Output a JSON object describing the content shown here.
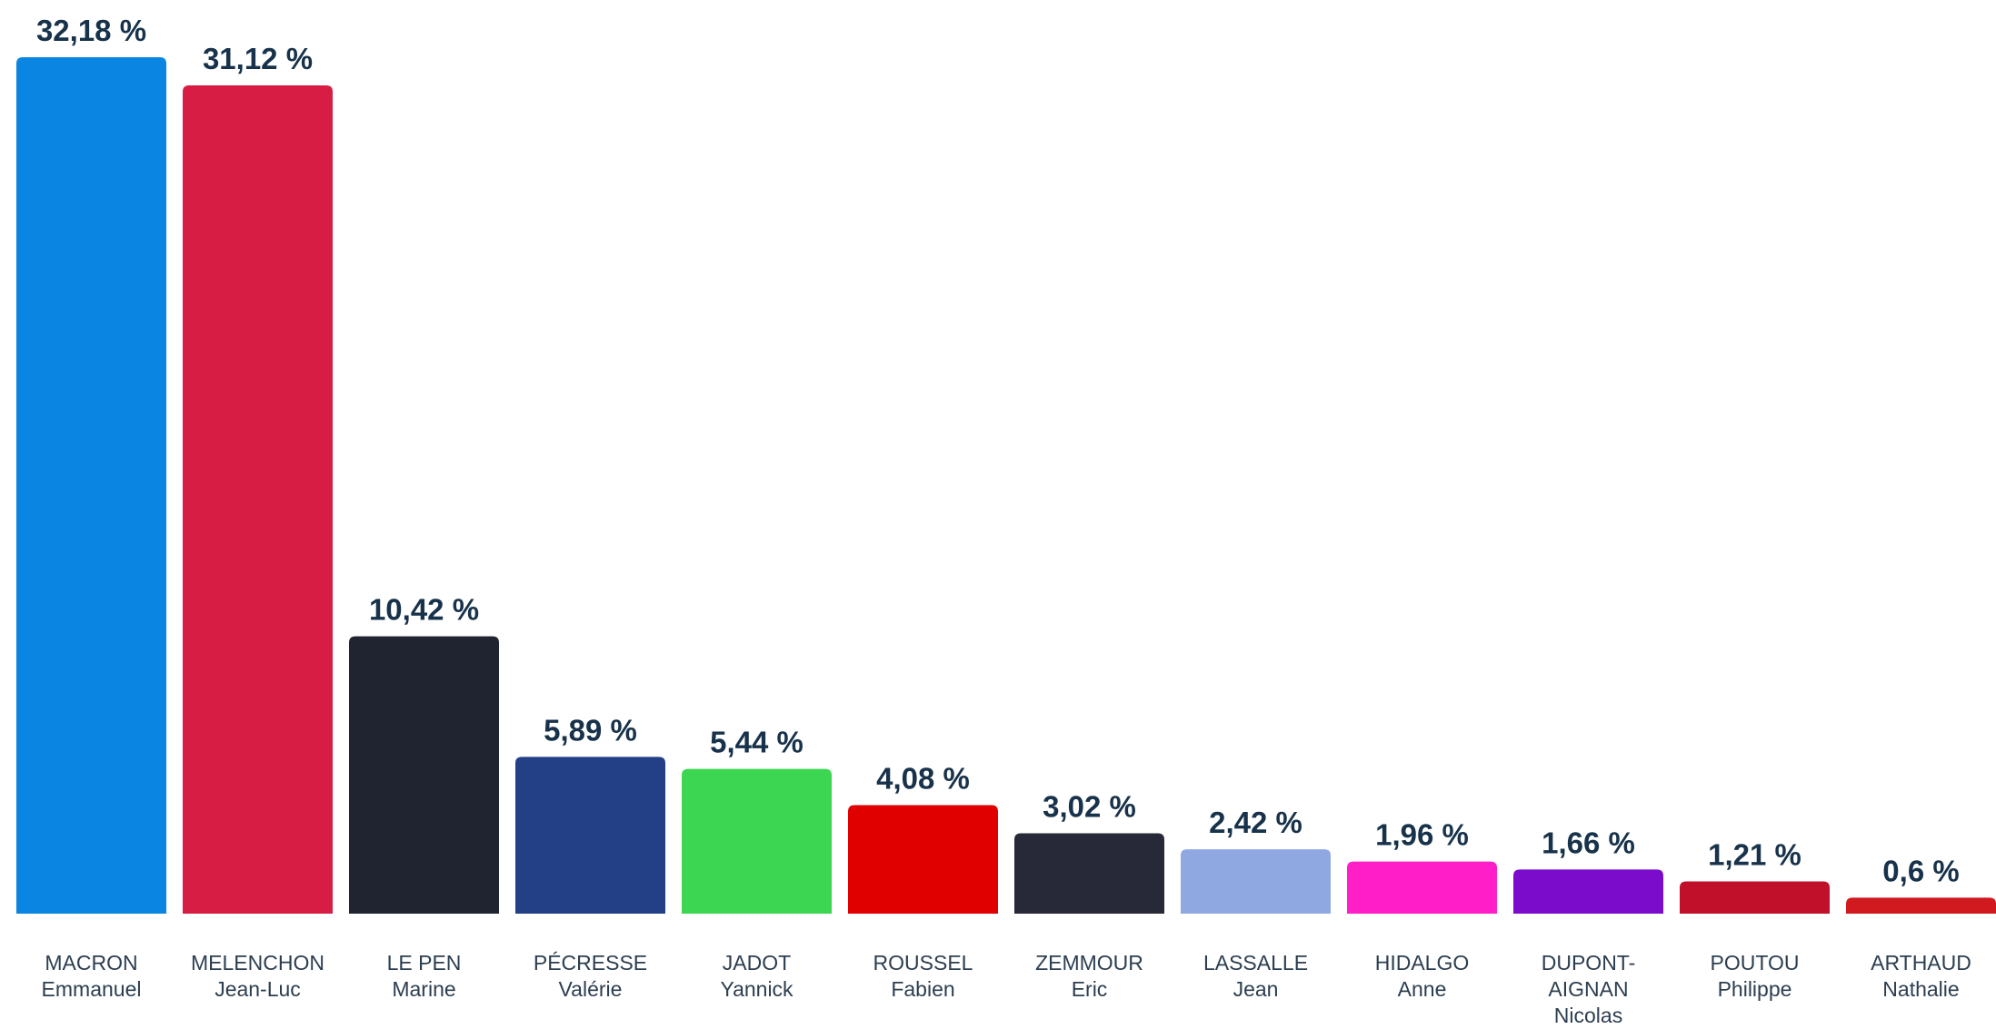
{
  "chart_data": {
    "type": "bar",
    "categories": [
      [
        "MACRON",
        "Emmanuel"
      ],
      [
        "MELENCHON",
        "Jean-Luc"
      ],
      [
        "LE PEN",
        "Marine"
      ],
      [
        "PÉCRESSE",
        "Valérie"
      ],
      [
        "JADOT",
        "Yannick"
      ],
      [
        "ROUSSEL",
        "Fabien"
      ],
      [
        "ZEMMOUR",
        "Eric"
      ],
      [
        "LASSALLE",
        "Jean"
      ],
      [
        "HIDALGO",
        "Anne"
      ],
      [
        "DUPONT-",
        "AIGNAN",
        "Nicolas"
      ],
      [
        "POUTOU",
        "Philippe"
      ],
      [
        "ARTHAUD",
        "Nathalie"
      ]
    ],
    "values": [
      32.18,
      31.12,
      10.42,
      5.89,
      5.44,
      4.08,
      3.02,
      2.42,
      1.96,
      1.66,
      1.21,
      0.6
    ],
    "value_labels": [
      "32,18 %",
      "31,12 %",
      "10,42 %",
      "5,89 %",
      "5,44 %",
      "4,08 %",
      "3,02 %",
      "2,42 %",
      "1,96 %",
      "1,66 %",
      "1,21 %",
      "0,6 %"
    ],
    "colors": [
      "#0a86e2",
      "#d81d45",
      "#1f2430",
      "#233f85",
      "#3dd652",
      "#e00000",
      "#272838",
      "#90a8e2",
      "#ff1ec8",
      "#7b0ccc",
      "#c0102a",
      "#d01a20"
    ]
  }
}
